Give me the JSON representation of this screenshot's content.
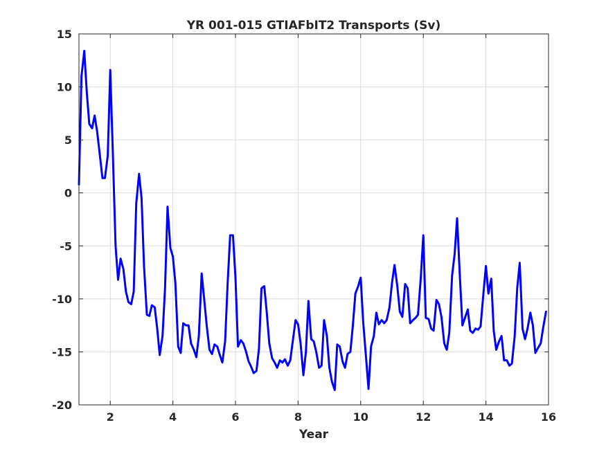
{
  "chart_data": {
    "type": "line",
    "title": "YR 001-015 GTIAFbIT2 Transports (Sv)",
    "xlabel": "Year",
    "ylabel": "",
    "xlim": [
      1,
      16
    ],
    "ylim": [
      -20,
      15
    ],
    "xticks": [
      2,
      4,
      6,
      8,
      10,
      12,
      14,
      16
    ],
    "yticks": [
      -20,
      -15,
      -10,
      -5,
      0,
      5,
      10,
      15
    ],
    "grid": true,
    "colors": {
      "series": "#0000ff",
      "axes": "#262626",
      "grid": "#dcdcdc"
    },
    "series": [
      {
        "name": "",
        "x": [
          1.0,
          1.08,
          1.17,
          1.25,
          1.33,
          1.42,
          1.5,
          1.58,
          1.67,
          1.75,
          1.83,
          1.92,
          2.0,
          2.08,
          2.17,
          2.25,
          2.33,
          2.42,
          2.5,
          2.58,
          2.67,
          2.75,
          2.83,
          2.92,
          3.0,
          3.08,
          3.17,
          3.25,
          3.33,
          3.42,
          3.5,
          3.58,
          3.67,
          3.75,
          3.83,
          3.92,
          4.0,
          4.08,
          4.17,
          4.25,
          4.33,
          4.42,
          4.5,
          4.58,
          4.67,
          4.75,
          4.83,
          4.92,
          5.0,
          5.08,
          5.17,
          5.25,
          5.33,
          5.42,
          5.5,
          5.58,
          5.67,
          5.75,
          5.83,
          5.92,
          6.0,
          6.08,
          6.17,
          6.25,
          6.33,
          6.42,
          6.5,
          6.58,
          6.67,
          6.75,
          6.83,
          6.92,
          7.0,
          7.08,
          7.17,
          7.25,
          7.33,
          7.42,
          7.5,
          7.58,
          7.67,
          7.75,
          7.83,
          7.92,
          8.0,
          8.08,
          8.17,
          8.25,
          8.33,
          8.42,
          8.5,
          8.58,
          8.67,
          8.75,
          8.83,
          8.92,
          9.0,
          9.08,
          9.17,
          9.25,
          9.33,
          9.42,
          9.5,
          9.58,
          9.67,
          9.75,
          9.83,
          9.92,
          10.0,
          10.08,
          10.17,
          10.25,
          10.33,
          10.42,
          10.5,
          10.58,
          10.67,
          10.75,
          10.83,
          10.92,
          11.0,
          11.08,
          11.17,
          11.25,
          11.33,
          11.42,
          11.5,
          11.58,
          11.67,
          11.75,
          11.83,
          11.92,
          12.0,
          12.08,
          12.17,
          12.25,
          12.33,
          12.42,
          12.5,
          12.58,
          12.67,
          12.75,
          12.83,
          12.92,
          13.0,
          13.08,
          13.17,
          13.25,
          13.33,
          13.42,
          13.5,
          13.58,
          13.67,
          13.75,
          13.83,
          13.92,
          14.0,
          14.08,
          14.17,
          14.25,
          14.33,
          14.42,
          14.5,
          14.58,
          14.67,
          14.75,
          14.83,
          14.92,
          15.0,
          15.08,
          15.17,
          15.25,
          15.33,
          15.42,
          15.5,
          15.58,
          15.67,
          15.75,
          15.83,
          15.92
        ],
        "y": [
          0.8,
          11.0,
          13.4,
          9.5,
          6.5,
          6.1,
          7.3,
          5.8,
          3.5,
          1.4,
          1.4,
          3.5,
          11.6,
          4.0,
          -5.0,
          -8.2,
          -6.2,
          -7.2,
          -9.3,
          -10.3,
          -10.5,
          -9.3,
          -1.0,
          1.8,
          -0.5,
          -7.0,
          -11.5,
          -11.6,
          -10.6,
          -10.8,
          -12.8,
          -15.3,
          -13.5,
          -9.0,
          -1.3,
          -5.2,
          -6.0,
          -8.5,
          -14.5,
          -15.1,
          -12.3,
          -12.5,
          -12.5,
          -14.2,
          -14.8,
          -15.5,
          -13.5,
          -7.6,
          -10.0,
          -12.5,
          -14.8,
          -15.2,
          -14.3,
          -14.5,
          -15.3,
          -16.0,
          -14.0,
          -8.5,
          -4.0,
          -4.0,
          -8.0,
          -14.5,
          -13.9,
          -14.2,
          -14.9,
          -15.9,
          -16.4,
          -17.0,
          -16.8,
          -14.7,
          -9.0,
          -8.8,
          -11.3,
          -14.2,
          -15.6,
          -16.0,
          -16.5,
          -15.8,
          -16.0,
          -15.7,
          -16.3,
          -15.8,
          -14.0,
          -12.0,
          -12.4,
          -14.2,
          -17.2,
          -15.0,
          -10.2,
          -13.8,
          -14.0,
          -15.0,
          -16.5,
          -16.3,
          -12.0,
          -13.5,
          -16.5,
          -17.8,
          -18.6,
          -14.3,
          -14.5,
          -15.9,
          -16.5,
          -15.2,
          -15.0,
          -12.5,
          -9.5,
          -8.8,
          -8.0,
          -12.2,
          -15.5,
          -18.5,
          -14.5,
          -13.5,
          -11.3,
          -12.4,
          -12.0,
          -12.3,
          -12.0,
          -10.8,
          -8.5,
          -6.8,
          -8.8,
          -11.2,
          -11.7,
          -8.6,
          -9.0,
          -12.3,
          -12.0,
          -11.8,
          -11.5,
          -8.0,
          -4.0,
          -11.8,
          -11.9,
          -12.8,
          -13.0,
          -10.1,
          -10.5,
          -11.7,
          -14.2,
          -14.8,
          -13.2,
          -7.8,
          -5.8,
          -2.4,
          -8.0,
          -12.5,
          -11.8,
          -11.0,
          -13.0,
          -13.2,
          -12.8,
          -12.9,
          -12.6,
          -9.5,
          -6.9,
          -9.5,
          -8.1,
          -13.0,
          -14.8,
          -14.0,
          -13.5,
          -15.8,
          -15.8,
          -16.3,
          -16.1,
          -13.5,
          -9.0,
          -6.6,
          -12.8,
          -13.8,
          -12.8,
          -11.3,
          -12.5,
          -15.1,
          -14.6,
          -14.2,
          -12.7,
          -11.2
        ]
      }
    ]
  }
}
